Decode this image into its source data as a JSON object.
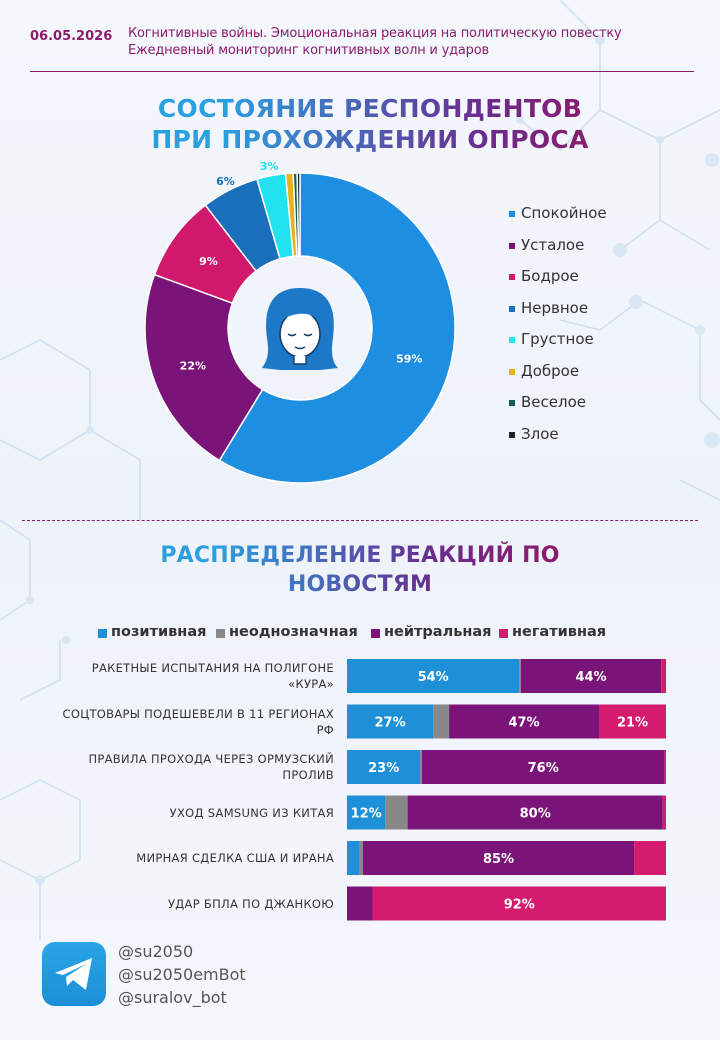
{
  "header": {
    "date": "06.05.2026",
    "line1": "Когнитивные войны. Эмоциональная реакция на политическую повестку",
    "line2": "Ежедневный мониторинг когнитивных волн и ударов"
  },
  "colors": {
    "positive": "#1e90d8",
    "ambiguous": "#888888",
    "neutral": "#7a1478",
    "negative": "#d41b6e"
  },
  "chart_data": [
    {
      "type": "pie",
      "title": [
        "СОСТОЯНИЕ РЕСПОНДЕНТОВ",
        "ПРИ ПРОХОЖДЕНИИ ОПРОСА"
      ],
      "center_icon": "woman-face-icon",
      "legend_position": "right",
      "slices": [
        {
          "label": "Спокойное",
          "value": 59,
          "display": "59%",
          "color": "#1e8ee0"
        },
        {
          "label": "Усталое",
          "value": 22,
          "display": "22%",
          "color": "#7a1478"
        },
        {
          "label": "Бодрое",
          "value": 9,
          "display": "9%",
          "color": "#d0186c"
        },
        {
          "label": "Нервное",
          "value": 6,
          "display": "6%",
          "color": "#1a6fba"
        },
        {
          "label": "Грустное",
          "value": 3,
          "display": "3%",
          "color": "#22e2f0"
        },
        {
          "label": "Доброе",
          "value": 0.8,
          "display": "",
          "color": "#e6b31e"
        },
        {
          "label": "Веселое",
          "value": 0.4,
          "display": "",
          "color": "#145a5a"
        },
        {
          "label": "Злое",
          "value": 0.3,
          "display": "",
          "color": "#222222"
        }
      ]
    },
    {
      "type": "bar",
      "orientation": "horizontal",
      "stacked": true,
      "percent": true,
      "title": [
        "РАСПРЕДЕЛЕНИЕ РЕАКЦИЙ ПО",
        "НОВОСТЯМ"
      ],
      "legend_position": "top",
      "series_names": [
        "позитивная",
        "неоднозначная",
        "нейтральная",
        "негативная"
      ],
      "categories": [
        [
          "РАКЕТНЫЕ ИСПЫТАНИЯ НА ПОЛИГОНЕ",
          "«КУРА»"
        ],
        [
          "СОЦТОВАРЫ ПОДЕШЕВЕЛИ В 11 РЕГИОНАХ",
          "РФ"
        ],
        [
          "ПРАВИЛА ПРОХОДА ЧЕРЕЗ ОРМУЗСКИЙ",
          "ПРОЛИВ"
        ],
        [
          "УХОД SAMSUNG ИЗ КИТАЯ"
        ],
        [
          "МИРНАЯ СДЕЛКА США И ИРАНА"
        ],
        [
          "УДАР БПЛА ПО ДЖАНКОЮ"
        ]
      ],
      "series": [
        {
          "name": "позитивная",
          "values": [
            54,
            27,
            23,
            12,
            4,
            0
          ]
        },
        {
          "name": "неоднозначная",
          "values": [
            0.5,
            5,
            0.5,
            7,
            1,
            0
          ]
        },
        {
          "name": "нейтральная",
          "values": [
            44,
            47,
            76,
            80,
            85,
            8
          ]
        },
        {
          "name": "негативная",
          "values": [
            1.5,
            21,
            0.5,
            1,
            10,
            92
          ]
        }
      ],
      "data_labels": [
        [
          "54%",
          "",
          "44%",
          ""
        ],
        [
          "27%",
          "",
          "47%",
          "21%"
        ],
        [
          "23%",
          "",
          "76%",
          ""
        ],
        [
          "12%",
          "",
          "80%",
          ""
        ],
        [
          "",
          "",
          "85%",
          ""
        ],
        [
          "",
          "",
          "",
          "92%"
        ]
      ]
    }
  ],
  "footer": {
    "telegram_icon": "telegram-icon",
    "contacts": [
      "@su2050",
      "@su2050emBot",
      "@suralov_bot"
    ]
  }
}
